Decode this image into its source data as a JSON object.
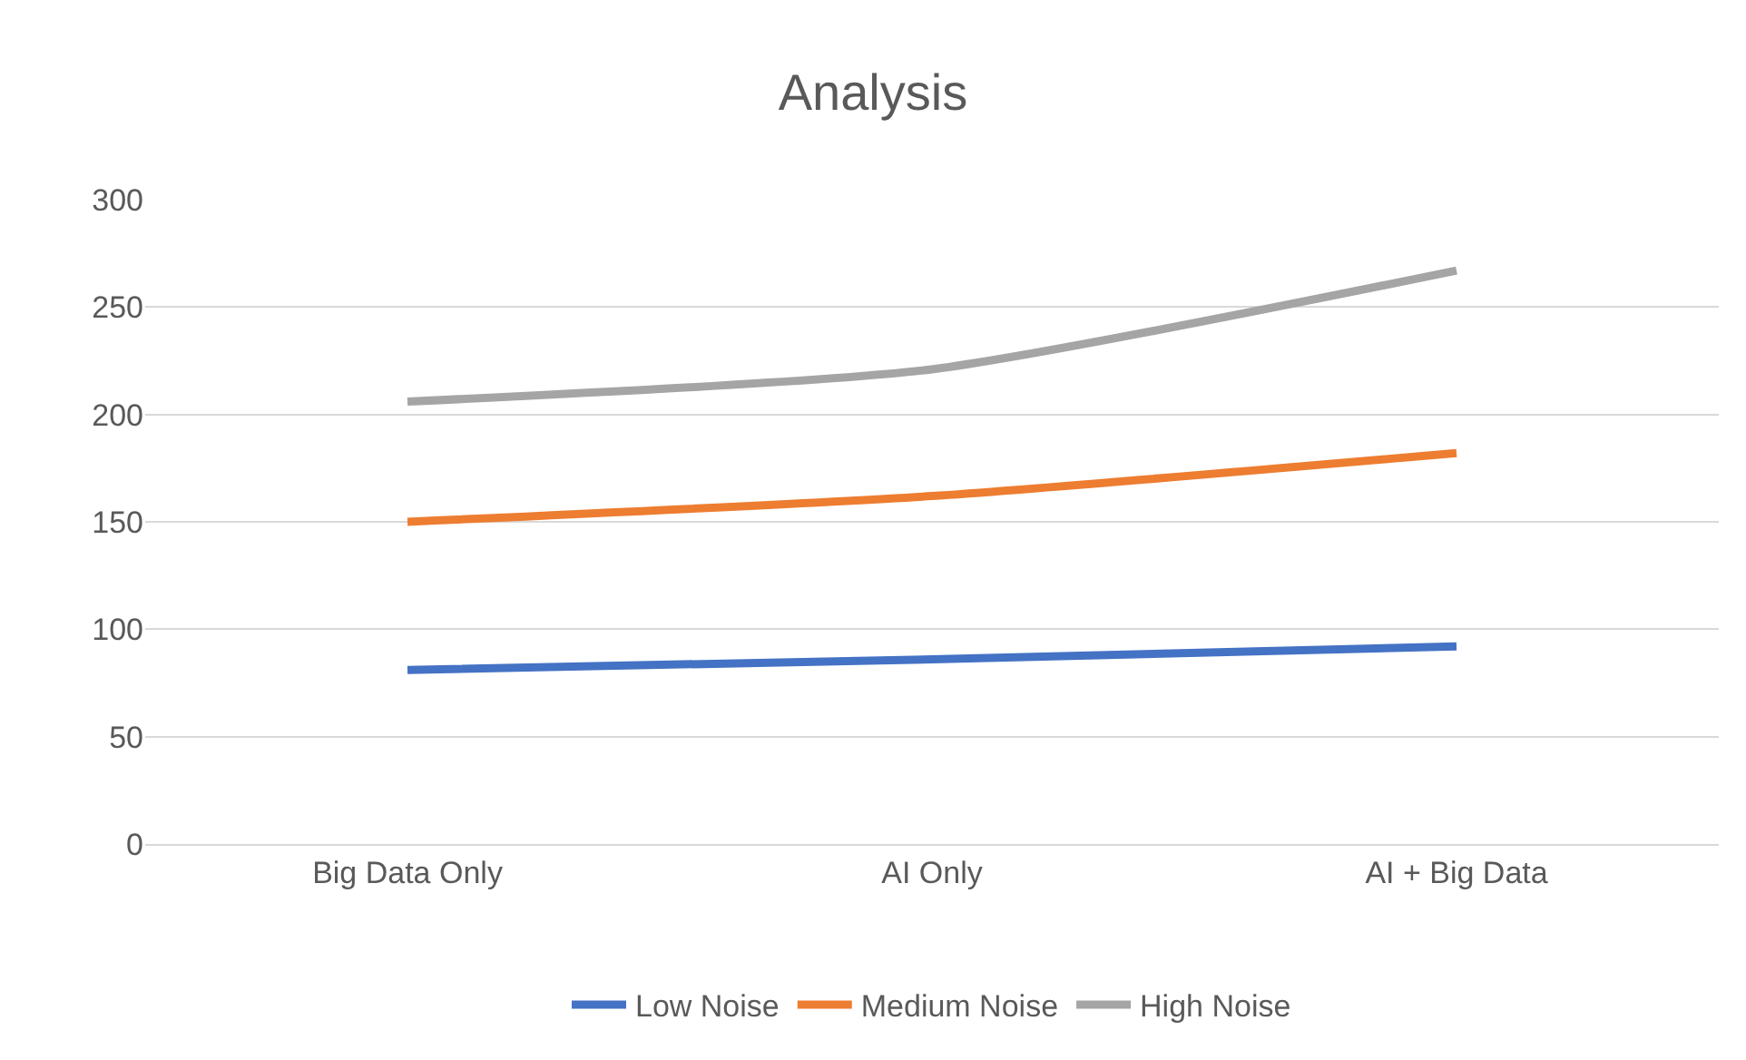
{
  "chart_data": {
    "type": "line",
    "title": "Analysis",
    "categories": [
      "Big Data Only",
      "AI Only",
      "AI + Big Data"
    ],
    "series": [
      {
        "name": "Low Noise",
        "color": "#4472c4",
        "values": [
          81,
          86,
          92
        ]
      },
      {
        "name": "Medium Noise",
        "color": "#ed7d31",
        "values": [
          150,
          162,
          182
        ]
      },
      {
        "name": "High Noise",
        "color": "#a5a5a5",
        "values": [
          206,
          221,
          267
        ]
      }
    ],
    "ylim": [
      0,
      300
    ],
    "yticks": [
      0,
      50,
      100,
      150,
      200,
      250,
      300
    ],
    "grid": "y",
    "legend": "bottom",
    "marker": "none",
    "line_style": "solid"
  }
}
